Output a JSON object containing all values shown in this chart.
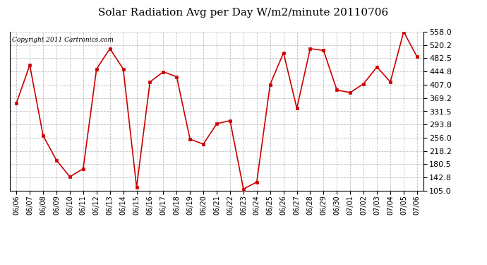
{
  "title": "Solar Radiation Avg per Day W/m2/minute 20110706",
  "copyright": "Copyright 2011 Cartronics.com",
  "dates": [
    "06/06",
    "06/07",
    "06/08",
    "06/09",
    "06/10",
    "06/11",
    "06/12",
    "06/13",
    "06/14",
    "06/15",
    "06/16",
    "06/17",
    "06/18",
    "06/19",
    "06/20",
    "06/21",
    "06/22",
    "06/23",
    "06/24",
    "06/25",
    "06/26",
    "06/27",
    "06/28",
    "06/29",
    "06/30",
    "07/01",
    "07/02",
    "07/03",
    "07/04",
    "07/05",
    "07/06"
  ],
  "values": [
    355,
    463,
    262,
    192,
    145,
    168,
    452,
    510,
    452,
    115,
    415,
    444,
    430,
    252,
    238,
    296,
    305,
    110,
    130,
    408,
    498,
    340,
    510,
    505,
    392,
    385,
    410,
    458,
    415,
    558,
    487
  ],
  "ymin": 105.0,
  "ymax": 558.0,
  "yticks": [
    105.0,
    142.8,
    180.5,
    218.2,
    256.0,
    293.8,
    331.5,
    369.2,
    407.0,
    444.8,
    482.5,
    520.2,
    558.0
  ],
  "line_color": "#cc0000",
  "marker_color": "#cc0000",
  "bg_color": "#ffffff",
  "plot_bg_color": "#ffffff",
  "grid_color": "#c0c0c0",
  "title_fontsize": 11,
  "copyright_fontsize": 6.5,
  "tick_fontsize": 7,
  "ytick_fontsize": 8
}
